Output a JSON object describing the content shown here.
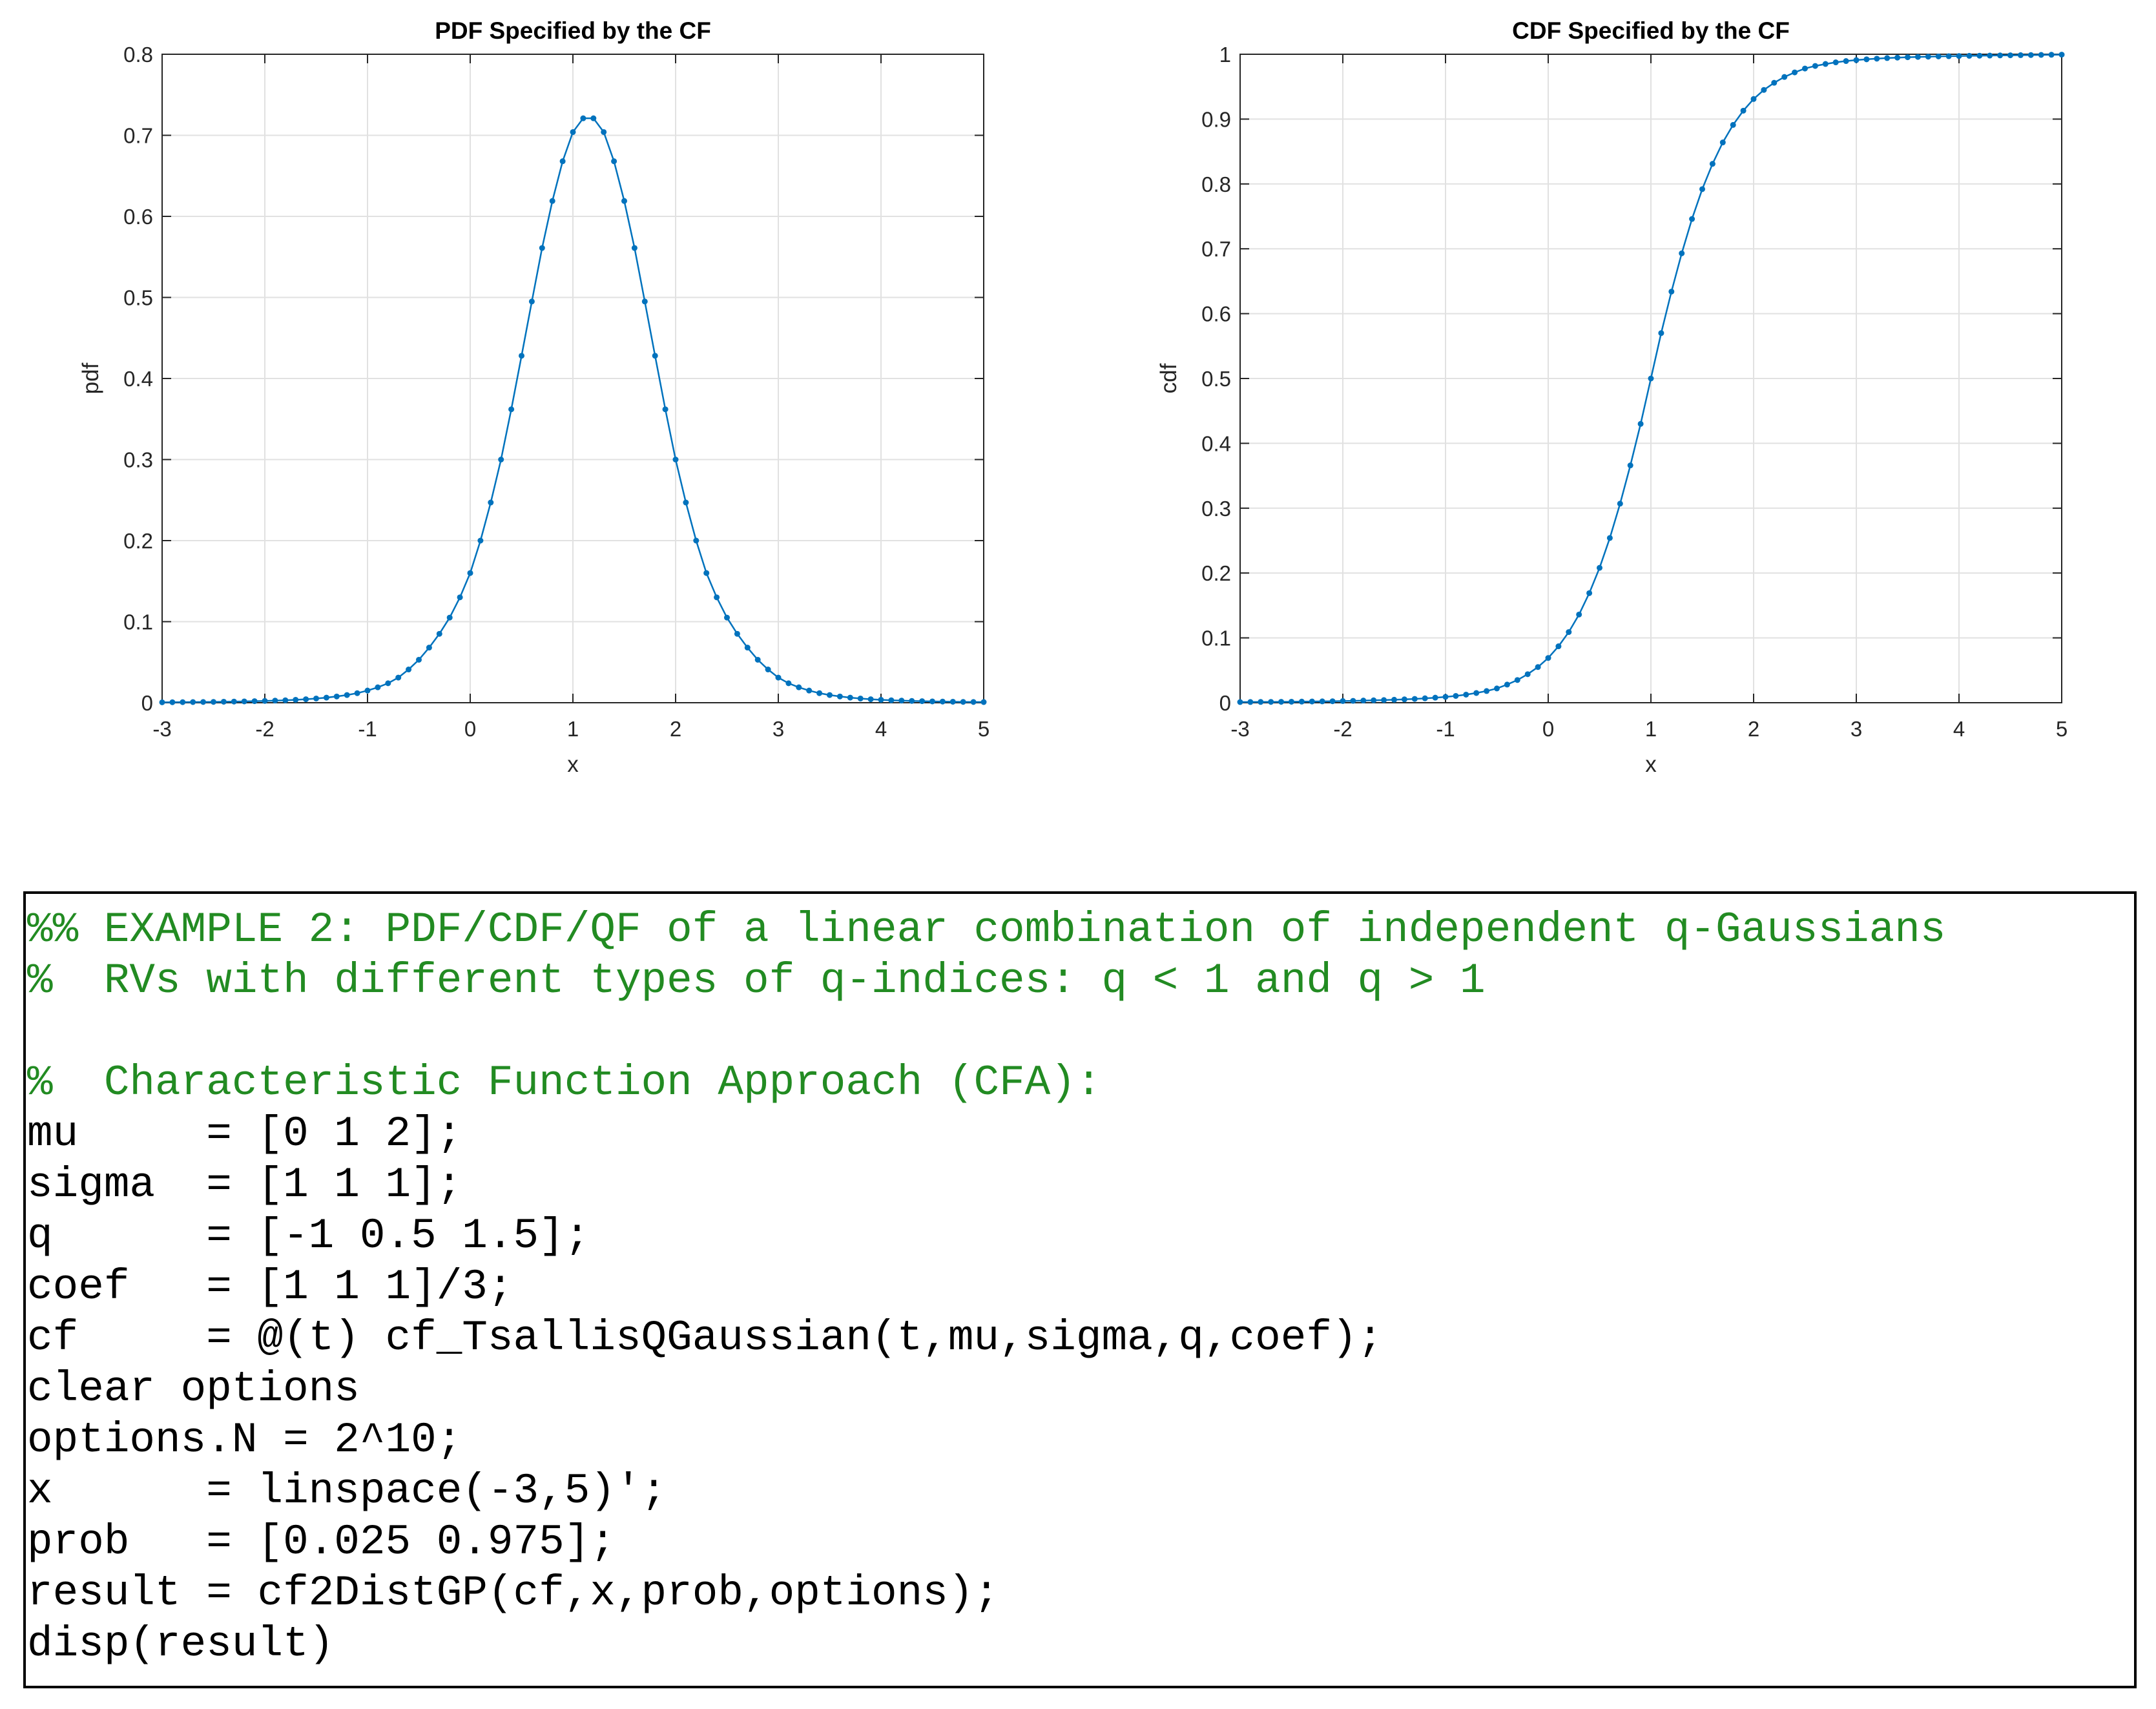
{
  "chart_data": [
    {
      "type": "line",
      "title": "PDF Specified by the CF",
      "xlabel": "x",
      "ylabel": "pdf",
      "xlim": [
        -3,
        5
      ],
      "ylim": [
        0,
        0.8
      ],
      "xticks": [
        "-3",
        "-2",
        "-1",
        "0",
        "1",
        "2",
        "3",
        "4",
        "5"
      ],
      "yticks": [
        "0",
        "0.1",
        "0.2",
        "0.3",
        "0.4",
        "0.5",
        "0.6",
        "0.7",
        "0.8"
      ],
      "grid": true,
      "markers": true,
      "series": [
        {
          "x": [
            -3.0,
            -2.9,
            -2.8,
            -2.7,
            -2.6,
            -2.5,
            -2.4,
            -2.3,
            -2.2,
            -2.1,
            -2.0,
            -1.9,
            -1.8,
            -1.7,
            -1.6,
            -1.5,
            -1.4,
            -1.3,
            -1.2,
            -1.1,
            -1.0,
            -0.9,
            -0.8,
            -0.7,
            -0.6,
            -0.5,
            -0.4,
            -0.3,
            -0.2,
            -0.1,
            0.0,
            0.1,
            0.2,
            0.3,
            0.4,
            0.5,
            0.6,
            0.7,
            0.8,
            0.9,
            1.0,
            1.1,
            1.2,
            1.3,
            1.4,
            1.5,
            1.6,
            1.7,
            1.8,
            1.9,
            2.0,
            2.1,
            2.2,
            2.3,
            2.4,
            2.5,
            2.6,
            2.7,
            2.8,
            2.9,
            3.0,
            3.1,
            3.2,
            3.3,
            3.4,
            3.5,
            3.6,
            3.7,
            3.8,
            3.9,
            4.0,
            4.1,
            4.2,
            4.3,
            4.4,
            4.5,
            4.6,
            4.7,
            4.8,
            4.9,
            5.0
          ],
          "y": [
            0.0005,
            0.0006,
            0.0007,
            0.0008,
            0.0009,
            0.001,
            0.0012,
            0.0014,
            0.0016,
            0.0019,
            0.0022,
            0.0026,
            0.003,
            0.0036,
            0.0043,
            0.0052,
            0.0063,
            0.0077,
            0.0095,
            0.0118,
            0.015,
            0.019,
            0.024,
            0.031,
            0.041,
            0.053,
            0.068,
            0.085,
            0.105,
            0.13,
            0.16,
            0.2,
            0.247,
            0.3,
            0.362,
            0.428,
            0.495,
            0.561,
            0.619,
            0.668,
            0.704,
            0.721,
            0.721,
            0.704,
            0.668,
            0.619,
            0.561,
            0.495,
            0.428,
            0.362,
            0.3,
            0.247,
            0.2,
            0.16,
            0.13,
            0.105,
            0.085,
            0.068,
            0.053,
            0.041,
            0.031,
            0.024,
            0.019,
            0.015,
            0.0118,
            0.0095,
            0.0077,
            0.0063,
            0.0052,
            0.0043,
            0.0036,
            0.003,
            0.0026,
            0.0022,
            0.0019,
            0.0016,
            0.0014,
            0.0012,
            0.001,
            0.0009,
            0.0008
          ]
        }
      ]
    },
    {
      "type": "line",
      "title": "CDF Specified by the CF",
      "xlabel": "x",
      "ylabel": "cdf",
      "xlim": [
        -3,
        5
      ],
      "ylim": [
        0,
        1
      ],
      "xticks": [
        "-3",
        "-2",
        "-1",
        "0",
        "1",
        "2",
        "3",
        "4",
        "5"
      ],
      "yticks": [
        "0",
        "0.1",
        "0.2",
        "0.3",
        "0.4",
        "0.5",
        "0.6",
        "0.7",
        "0.8",
        "0.9",
        "1"
      ],
      "grid": true,
      "markers": true,
      "series": [
        {
          "x": [
            -3.0,
            -2.9,
            -2.8,
            -2.7,
            -2.6,
            -2.5,
            -2.4,
            -2.3,
            -2.2,
            -2.1,
            -2.0,
            -1.9,
            -1.8,
            -1.7,
            -1.6,
            -1.5,
            -1.4,
            -1.3,
            -1.2,
            -1.1,
            -1.0,
            -0.9,
            -0.8,
            -0.7,
            -0.6,
            -0.5,
            -0.4,
            -0.3,
            -0.2,
            -0.1,
            0.0,
            0.1,
            0.2,
            0.3,
            0.4,
            0.5,
            0.6,
            0.7,
            0.8,
            0.9,
            1.0,
            1.1,
            1.2,
            1.3,
            1.4,
            1.5,
            1.6,
            1.7,
            1.8,
            1.9,
            2.0,
            2.1,
            2.2,
            2.3,
            2.4,
            2.5,
            2.6,
            2.7,
            2.8,
            2.9,
            3.0,
            3.1,
            3.2,
            3.3,
            3.4,
            3.5,
            3.6,
            3.7,
            3.8,
            3.9,
            4.0,
            4.1,
            4.2,
            4.3,
            4.4,
            4.5,
            4.6,
            4.7,
            4.8,
            4.9,
            5.0
          ],
          "y": [
            0.001,
            0.0011,
            0.0012,
            0.0013,
            0.0014,
            0.0015,
            0.0017,
            0.0019,
            0.0021,
            0.0023,
            0.0026,
            0.0029,
            0.0033,
            0.0037,
            0.0041,
            0.0046,
            0.0052,
            0.0059,
            0.0068,
            0.0078,
            0.009,
            0.0105,
            0.0125,
            0.015,
            0.018,
            0.022,
            0.028,
            0.035,
            0.044,
            0.055,
            0.069,
            0.087,
            0.109,
            0.136,
            0.169,
            0.208,
            0.254,
            0.307,
            0.366,
            0.43,
            0.5,
            0.57,
            0.634,
            0.693,
            0.746,
            0.792,
            0.831,
            0.864,
            0.891,
            0.913,
            0.931,
            0.945,
            0.956,
            0.965,
            0.972,
            0.978,
            0.982,
            0.985,
            0.9875,
            0.9895,
            0.991,
            0.9922,
            0.9932,
            0.9941,
            0.9948,
            0.9954,
            0.9959,
            0.9963,
            0.9967,
            0.997,
            0.9973,
            0.9976,
            0.9978,
            0.998,
            0.9982,
            0.9984,
            0.9986,
            0.9988,
            0.999,
            0.9992,
            0.9994
          ]
        }
      ]
    }
  ],
  "colors": {
    "line": "#0072bd",
    "grid": "#e1e1e1",
    "comment": "#228b22",
    "code": "#000000"
  },
  "code": {
    "lines": [
      "%% EXAMPLE 2: PDF/CDF/QF of a linear combination of independent q-Gaussians",
      "%  RVs with different types of q-indices: q < 1 and q > 1",
      "",
      "%  Characteristic Function Approach (CFA):",
      "mu     = [0 1 2];",
      "sigma  = [1 1 1];",
      "q      = [-1 0.5 1.5];",
      "coef   = [1 1 1]/3;",
      "cf     = @(t) cf_TsallisQGaussian(t,mu,sigma,q,coef);",
      "clear options",
      "options.N = 2^10;",
      "x      = linspace(-3,5)';",
      "prob   = [0.025 0.975];",
      "result = cf2DistGP(cf,x,prob,options);",
      "disp(result)"
    ]
  }
}
